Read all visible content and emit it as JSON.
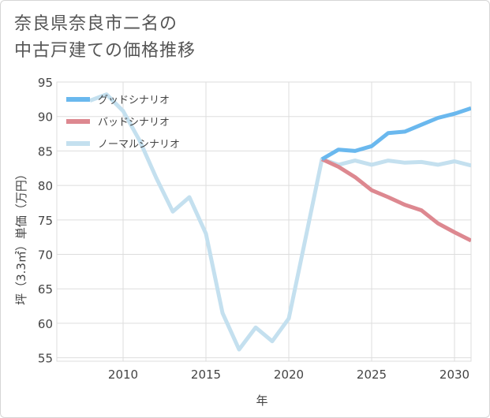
{
  "title_lines": [
    "奈良県奈良市二名の",
    "中古戸建ての価格推移"
  ],
  "chart_data": {
    "type": "line",
    "xlabel": "年",
    "ylabel": "坪（3.3㎡）単価（万円）",
    "xlim": [
      2006,
      2031
    ],
    "ylim": [
      54.5,
      95
    ],
    "x_ticks": [
      2010,
      2015,
      2020,
      2025,
      2030
    ],
    "y_ticks": [
      55,
      60,
      65,
      70,
      75,
      80,
      85,
      90,
      95
    ],
    "grid": true,
    "legend_position": "top-left",
    "series": [
      {
        "name": "グッドシナリオ",
        "color": "#6ab8ee",
        "x": [
          2022,
          2023,
          2024,
          2025,
          2026,
          2027,
          2028,
          2029,
          2030,
          2031
        ],
        "y": [
          83.8,
          85.2,
          85.0,
          85.7,
          87.6,
          87.8,
          88.8,
          89.8,
          90.4,
          91.2
        ]
      },
      {
        "name": "バッドシナリオ",
        "color": "#dd8890",
        "x": [
          2022,
          2023,
          2024,
          2025,
          2026,
          2027,
          2028,
          2029,
          2030,
          2031
        ],
        "y": [
          83.8,
          82.7,
          81.2,
          79.3,
          78.3,
          77.2,
          76.4,
          74.5,
          73.2,
          72.0
        ]
      },
      {
        "name": "ノーマルシナリオ",
        "color": "#c4e0ef",
        "x": [
          2008,
          2009,
          2010,
          2011,
          2012,
          2013,
          2014,
          2015,
          2016,
          2017,
          2018,
          2019,
          2020,
          2021,
          2022,
          2023,
          2024,
          2025,
          2026,
          2027,
          2028,
          2029,
          2030,
          2031
        ],
        "y": [
          92.3,
          93.2,
          90.8,
          86.5,
          81.1,
          76.2,
          78.3,
          73.0,
          61.5,
          56.2,
          59.4,
          57.4,
          60.7,
          72.2,
          83.8,
          83.0,
          83.6,
          83.0,
          83.6,
          83.3,
          83.4,
          83.0,
          83.5,
          82.9
        ]
      }
    ]
  }
}
